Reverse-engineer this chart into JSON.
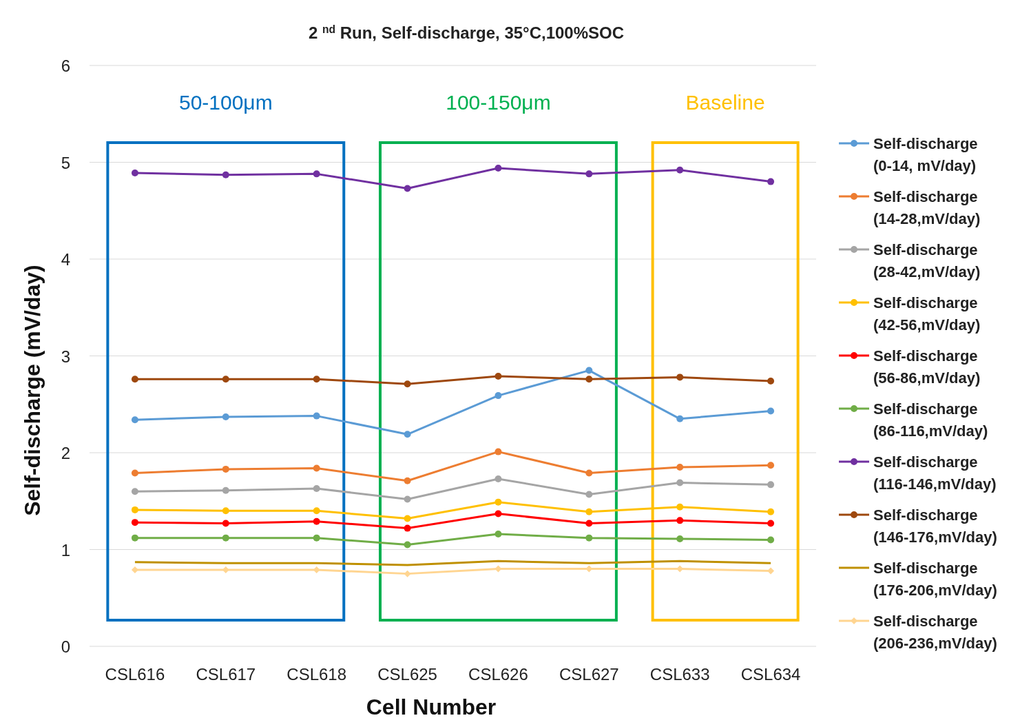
{
  "chart_data": {
    "type": "line",
    "title": "2 $^{nd}$ Run, Self-discharge, 35°C,100%SOC",
    "xlabel": "Cell Number",
    "ylabel": "Self-discharge (mV/day)",
    "categories": [
      "CSL616",
      "CSL617",
      "CSL618",
      "CSL625",
      "CSL626",
      "CSL627",
      "CSL633",
      "CSL634"
    ],
    "ylim": [
      0,
      6
    ],
    "yticks": [
      0,
      1,
      2,
      3,
      4,
      5,
      6
    ],
    "grid": "y",
    "legend": "right",
    "marker": "circle",
    "series": [
      {
        "name": "Self-discharge (0-14, mV/day)",
        "color": "#5b9bd5",
        "values": [
          2.34,
          2.37,
          2.38,
          2.19,
          2.59,
          2.85,
          2.35,
          2.43
        ]
      },
      {
        "name": "Self-discharge (14-28,mV/day)",
        "color": "#ed7d31",
        "values": [
          1.79,
          1.83,
          1.84,
          1.71,
          2.01,
          1.79,
          1.85,
          1.87
        ]
      },
      {
        "name": "Self-discharge (28-42,mV/day)",
        "color": "#a5a5a5",
        "values": [
          1.6,
          1.61,
          1.63,
          1.52,
          1.73,
          1.57,
          1.69,
          1.67
        ]
      },
      {
        "name": "Self-discharge (42-56,mV/day)",
        "color": "#ffc000",
        "values": [
          1.41,
          1.4,
          1.4,
          1.32,
          1.49,
          1.39,
          1.44,
          1.39
        ]
      },
      {
        "name": "Self-discharge (56-86,mV/day)",
        "color": "#ff0000",
        "values": [
          1.28,
          1.27,
          1.29,
          1.22,
          1.37,
          1.27,
          1.3,
          1.27
        ]
      },
      {
        "name": "Self-discharge (86-116,mV/day)",
        "color": "#70ad47",
        "values": [
          1.12,
          1.12,
          1.12,
          1.05,
          1.16,
          1.12,
          1.11,
          1.1
        ]
      },
      {
        "name": "Self-discharge (116-146,mV/day)",
        "color": "#7030a0",
        "values": [
          4.89,
          4.87,
          4.88,
          4.73,
          4.94,
          4.88,
          4.92,
          4.8
        ]
      },
      {
        "name": "Self-discharge (146-176,mV/day)",
        "color": "#9e480e",
        "values": [
          2.76,
          2.76,
          2.76,
          2.71,
          2.79,
          2.76,
          2.78,
          2.74
        ]
      },
      {
        "name": "Self-discharge (176-206,mV/day)",
        "color": "#bf9000",
        "marker": "none",
        "values": [
          0.87,
          0.86,
          0.86,
          0.84,
          0.88,
          0.86,
          0.88,
          0.86
        ]
      },
      {
        "name": "Self-discharge (206-236,mV/day)",
        "color": "#ffd591",
        "marker": "diamond",
        "values": [
          0.79,
          0.79,
          0.79,
          0.75,
          0.8,
          0.8,
          0.8,
          0.78
        ]
      }
    ],
    "annotations": [
      "50-100μm",
      "100-150μm",
      "Baseline"
    ]
  }
}
